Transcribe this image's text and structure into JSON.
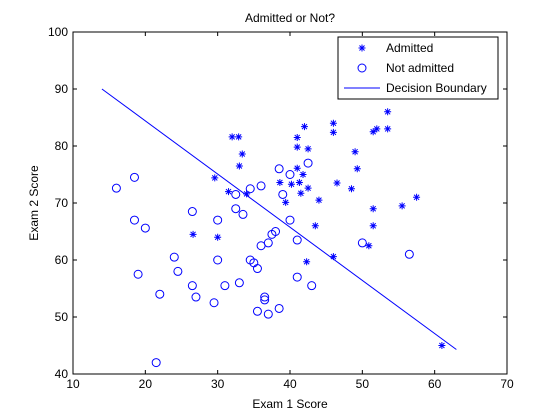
{
  "chart_data": {
    "type": "scatter",
    "title": "Admitted or Not?",
    "xlabel": "Exam 1 Score",
    "ylabel": "Exam 2 Score",
    "xlim": [
      10,
      70
    ],
    "ylim": [
      40,
      100
    ],
    "xticks": [
      10,
      20,
      30,
      40,
      50,
      60,
      70
    ],
    "yticks": [
      40,
      50,
      60,
      70,
      80,
      90,
      100
    ],
    "grid": false,
    "legend_position": "top-right",
    "series": [
      {
        "name": "Admitted",
        "marker": "star",
        "color": "#0000ff",
        "points": [
          [
            29.6,
            74.4
          ],
          [
            30.0,
            64.0
          ],
          [
            26.6,
            64.5
          ],
          [
            31.5,
            72.0
          ],
          [
            32.0,
            81.6
          ],
          [
            32.9,
            81.6
          ],
          [
            33.0,
            76.5
          ],
          [
            33.4,
            78.6
          ],
          [
            34.0,
            71.6
          ],
          [
            38.6,
            73.6
          ],
          [
            39.4,
            70.1
          ],
          [
            40.2,
            73.3
          ],
          [
            41.0,
            81.5
          ],
          [
            41.0,
            79.8
          ],
          [
            41.0,
            76.1
          ],
          [
            41.3,
            73.6
          ],
          [
            41.5,
            71.7
          ],
          [
            41.8,
            75.0
          ],
          [
            42.0,
            83.4
          ],
          [
            42.3,
            59.7
          ],
          [
            42.5,
            79.5
          ],
          [
            42.5,
            72.6
          ],
          [
            43.5,
            66.0
          ],
          [
            44.0,
            70.5
          ],
          [
            46.0,
            84.0
          ],
          [
            46.0,
            82.4
          ],
          [
            46.0,
            60.6
          ],
          [
            46.5,
            73.5
          ],
          [
            48.5,
            72.5
          ],
          [
            49.0,
            79.0
          ],
          [
            49.3,
            76.0
          ],
          [
            50.9,
            62.5
          ],
          [
            51.5,
            82.5
          ],
          [
            51.5,
            69.0
          ],
          [
            51.5,
            66.0
          ],
          [
            52.0,
            83.0
          ],
          [
            53.5,
            86.0
          ],
          [
            53.5,
            83.0
          ],
          [
            55.5,
            69.5
          ],
          [
            57.5,
            71.0
          ],
          [
            61.0,
            45.0
          ]
        ]
      },
      {
        "name": "Not admitted",
        "marker": "circle",
        "color": "#0000ff",
        "points": [
          [
            16.0,
            72.6
          ],
          [
            18.5,
            74.5
          ],
          [
            18.5,
            67.0
          ],
          [
            19.0,
            57.5
          ],
          [
            20.0,
            65.6
          ],
          [
            21.5,
            42.0
          ],
          [
            22.0,
            54.0
          ],
          [
            24.0,
            60.5
          ],
          [
            24.5,
            58.0
          ],
          [
            26.5,
            68.5
          ],
          [
            26.5,
            55.5
          ],
          [
            27.0,
            53.5
          ],
          [
            29.5,
            52.5
          ],
          [
            30.0,
            67.0
          ],
          [
            30.0,
            60.0
          ],
          [
            31.0,
            55.5
          ],
          [
            32.5,
            69.0
          ],
          [
            32.5,
            71.5
          ],
          [
            33.0,
            56.0
          ],
          [
            33.5,
            68.0
          ],
          [
            34.5,
            72.5
          ],
          [
            34.5,
            60.0
          ],
          [
            35.0,
            59.5
          ],
          [
            35.5,
            51.0
          ],
          [
            35.5,
            58.5
          ],
          [
            36.0,
            73.0
          ],
          [
            36.0,
            62.5
          ],
          [
            36.5,
            53.5
          ],
          [
            36.5,
            53.0
          ],
          [
            37.0,
            50.5
          ],
          [
            37.0,
            63.0
          ],
          [
            37.5,
            64.5
          ],
          [
            38.0,
            65.0
          ],
          [
            38.5,
            76.0
          ],
          [
            38.5,
            51.5
          ],
          [
            39.0,
            71.5
          ],
          [
            40.0,
            75.0
          ],
          [
            40.0,
            67.0
          ],
          [
            41.0,
            63.5
          ],
          [
            41.0,
            57.0
          ],
          [
            42.5,
            77.0
          ],
          [
            43.0,
            55.5
          ],
          [
            50.0,
            63.0
          ],
          [
            56.5,
            61.0
          ]
        ]
      },
      {
        "name": "Decision Boundary",
        "marker": "line",
        "color": "#0000ff",
        "points": [
          [
            14.0,
            90.0
          ],
          [
            63.0,
            44.3
          ]
        ]
      }
    ]
  }
}
